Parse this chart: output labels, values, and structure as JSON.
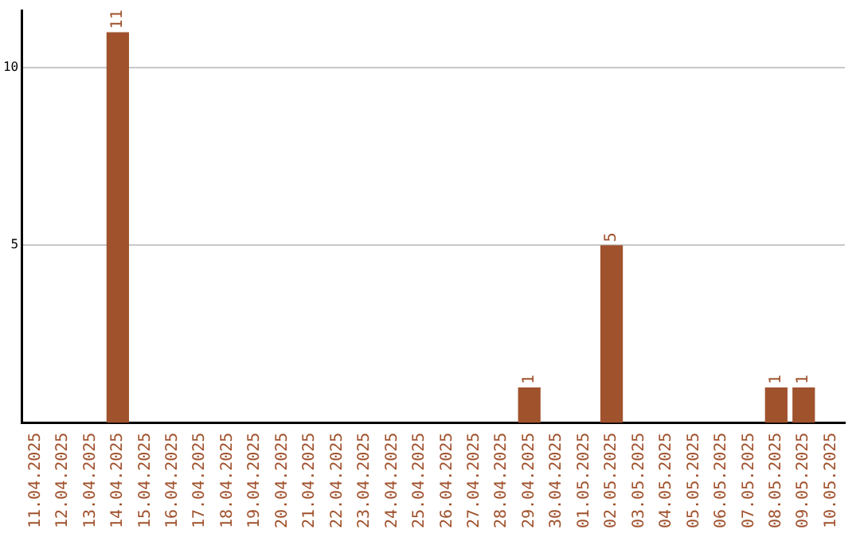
{
  "chart_data": {
    "type": "bar",
    "categories": [
      "11.04.2025",
      "12.04.2025",
      "13.04.2025",
      "14.04.2025",
      "15.04.2025",
      "16.04.2025",
      "17.04.2025",
      "18.04.2025",
      "19.04.2025",
      "20.04.2025",
      "21.04.2025",
      "22.04.2025",
      "23.04.2025",
      "24.04.2025",
      "25.04.2025",
      "26.04.2025",
      "27.04.2025",
      "28.04.2025",
      "29.04.2025",
      "30.04.2025",
      "01.05.2025",
      "02.05.2025",
      "03.05.2025",
      "04.05.2025",
      "05.05.2025",
      "06.05.2025",
      "07.05.2025",
      "08.05.2025",
      "09.05.2025",
      "10.05.2025"
    ],
    "values": [
      0,
      0,
      0,
      11,
      0,
      0,
      0,
      0,
      0,
      0,
      0,
      0,
      0,
      0,
      0,
      0,
      0,
      0,
      1,
      0,
      0,
      5,
      0,
      0,
      0,
      0,
      0,
      1,
      1,
      0
    ],
    "value_labels": [
      null,
      null,
      null,
      "11",
      null,
      null,
      null,
      null,
      null,
      null,
      null,
      null,
      null,
      null,
      null,
      null,
      null,
      null,
      "1",
      null,
      null,
      "5",
      null,
      null,
      null,
      null,
      null,
      "1",
      "1",
      null
    ],
    "color": "#a0522d",
    "ylim": [
      0,
      11.6
    ],
    "yticks": [
      5,
      10
    ],
    "grid": "y",
    "legend": false
  }
}
